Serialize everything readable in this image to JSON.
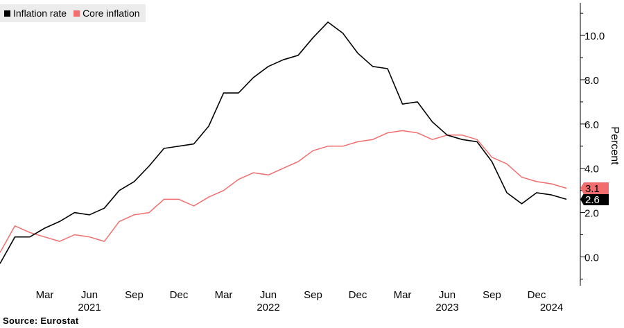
{
  "legend": [
    {
      "label": "Inflation rate",
      "color": "#000000"
    },
    {
      "label": "Core inflation",
      "color": "#f26d6d"
    }
  ],
  "source": "Source: Eurostat",
  "chart_data": {
    "type": "line",
    "ylabel": "Percent",
    "ylim": [
      -1.3,
      11.6
    ],
    "yticks": [
      0.0,
      2.0,
      4.0,
      6.0,
      8.0,
      10.0
    ],
    "ytick_labels": [
      "0.0",
      "2.0",
      "4.0",
      "6.0",
      "8.0",
      "10.0"
    ],
    "x": [
      "2020-12",
      "2021-01",
      "2021-02",
      "2021-03",
      "2021-04",
      "2021-05",
      "2021-06",
      "2021-07",
      "2021-08",
      "2021-09",
      "2021-10",
      "2021-11",
      "2021-12",
      "2022-01",
      "2022-02",
      "2022-03",
      "2022-04",
      "2022-05",
      "2022-06",
      "2022-07",
      "2022-08",
      "2022-09",
      "2022-10",
      "2022-11",
      "2022-12",
      "2023-01",
      "2023-02",
      "2023-03",
      "2023-04",
      "2023-05",
      "2023-06",
      "2023-07",
      "2023-08",
      "2023-09",
      "2023-10",
      "2023-11",
      "2023-12",
      "2024-01",
      "2024-02"
    ],
    "month_labels": [
      {
        "x": "2021-03",
        "label": "Mar"
      },
      {
        "x": "2021-06",
        "label": "Jun"
      },
      {
        "x": "2021-09",
        "label": "Sep"
      },
      {
        "x": "2021-12",
        "label": "Dec"
      },
      {
        "x": "2022-03",
        "label": "Mar"
      },
      {
        "x": "2022-06",
        "label": "Jun"
      },
      {
        "x": "2022-09",
        "label": "Sep"
      },
      {
        "x": "2022-12",
        "label": "Dec"
      },
      {
        "x": "2023-03",
        "label": "Mar"
      },
      {
        "x": "2023-06",
        "label": "Jun"
      },
      {
        "x": "2023-09",
        "label": "Sep"
      },
      {
        "x": "2023-12",
        "label": "Dec"
      }
    ],
    "year_labels": [
      {
        "x": "2021-06",
        "label": "2021"
      },
      {
        "x": "2022-06",
        "label": "2022"
      },
      {
        "x": "2023-06",
        "label": "2023"
      },
      {
        "x": "2024-01",
        "label": "2024"
      }
    ],
    "series": [
      {
        "name": "Inflation rate",
        "color": "#000000",
        "last_value_label": "2.6",
        "values": [
          -0.3,
          0.9,
          0.9,
          1.3,
          1.6,
          2.0,
          1.9,
          2.2,
          3.0,
          3.4,
          4.1,
          4.9,
          5.0,
          5.1,
          5.9,
          7.4,
          7.4,
          8.1,
          8.6,
          8.9,
          9.1,
          9.9,
          10.6,
          10.1,
          9.2,
          8.6,
          8.5,
          6.9,
          7.0,
          6.1,
          5.5,
          5.3,
          5.2,
          4.3,
          2.9,
          2.4,
          2.9,
          2.8,
          2.6
        ]
      },
      {
        "name": "Core inflation",
        "color": "#f26d6d",
        "last_value_label": "3.1",
        "values": [
          0.2,
          1.4,
          1.1,
          0.9,
          0.7,
          1.0,
          0.9,
          0.7,
          1.6,
          1.9,
          2.0,
          2.6,
          2.6,
          2.3,
          2.7,
          3.0,
          3.5,
          3.8,
          3.7,
          4.0,
          4.3,
          4.8,
          5.0,
          5.0,
          5.2,
          5.3,
          5.6,
          5.7,
          5.6,
          5.3,
          5.5,
          5.5,
          5.3,
          4.5,
          4.2,
          3.6,
          3.4,
          3.3,
          3.1
        ]
      }
    ],
    "grid": false,
    "legend_position": "top-left"
  }
}
